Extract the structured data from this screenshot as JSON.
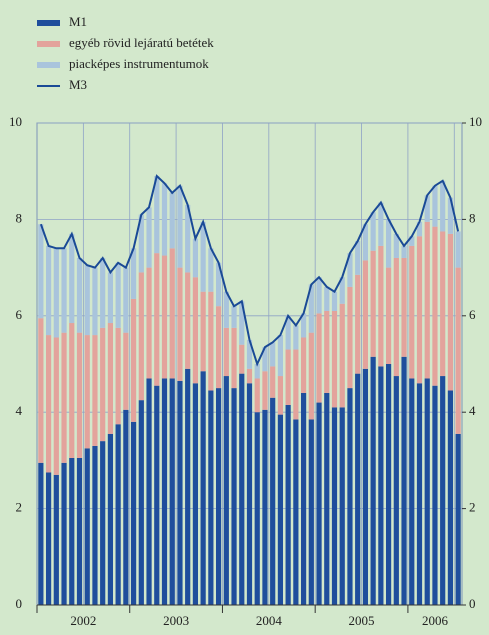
{
  "chart_data": {
    "type": "bar",
    "stacked": true,
    "categories": [
      "2002",
      null,
      null,
      null,
      null,
      null,
      null,
      null,
      null,
      null,
      null,
      null,
      "2003",
      null,
      null,
      null,
      null,
      null,
      null,
      null,
      null,
      null,
      null,
      null,
      "2004",
      null,
      null,
      null,
      null,
      null,
      null,
      null,
      null,
      null,
      null,
      null,
      "2005",
      null,
      null,
      null,
      null,
      null,
      null,
      null,
      null,
      null,
      null,
      null,
      "2006",
      null,
      null,
      null,
      null,
      null,
      null
    ],
    "series": [
      {
        "name": "M1",
        "color": "#1f4e9c",
        "mark": "bar",
        "values": [
          2.95,
          2.75,
          2.7,
          2.95,
          3.05,
          3.05,
          3.25,
          3.3,
          3.4,
          3.55,
          3.75,
          4.05,
          3.8,
          4.25,
          4.7,
          4.55,
          4.7,
          4.7,
          4.65,
          4.9,
          4.6,
          4.85,
          4.45,
          4.5,
          4.75,
          4.5,
          4.8,
          4.6,
          4.0,
          4.05,
          4.3,
          3.95,
          4.15,
          3.85,
          4.4,
          3.85,
          4.2,
          4.4,
          4.1,
          4.1,
          4.5,
          4.8,
          4.9,
          5.15,
          4.95,
          5.0,
          4.75,
          5.15,
          4.7,
          4.6,
          4.7,
          4.55,
          4.75,
          4.45,
          3.55
        ]
      },
      {
        "name": "egyéb rövid lejáratú betétek",
        "color": "#e3a39c",
        "mark": "bar",
        "values": [
          3.0,
          2.85,
          2.85,
          2.7,
          2.8,
          2.6,
          2.35,
          2.3,
          2.35,
          2.3,
          2.0,
          1.6,
          2.55,
          2.65,
          2.3,
          2.75,
          2.55,
          2.7,
          2.35,
          2.0,
          2.2,
          1.65,
          2.05,
          1.7,
          1.0,
          1.25,
          0.6,
          0.3,
          0.7,
          0.8,
          0.65,
          0.8,
          1.15,
          1.45,
          1.15,
          1.8,
          1.85,
          1.7,
          2.0,
          2.15,
          2.1,
          2.05,
          2.25,
          2.2,
          2.5,
          2.0,
          2.45,
          2.05,
          2.75,
          3.05,
          3.25,
          3.3,
          3.0,
          3.25,
          3.45
        ]
      },
      {
        "name": "piacképes instrumentumok",
        "color": "#a9c4dc",
        "mark": "bar",
        "values": [
          1.95,
          1.85,
          1.85,
          1.75,
          1.85,
          1.55,
          1.45,
          1.4,
          1.45,
          1.05,
          1.35,
          1.35,
          1.05,
          1.2,
          1.25,
          1.6,
          1.5,
          1.15,
          1.7,
          1.4,
          0.8,
          1.45,
          0.9,
          0.9,
          0.75,
          0.45,
          0.9,
          0.6,
          0.3,
          0.5,
          0.5,
          0.85,
          0.7,
          0.5,
          0.5,
          1.0,
          0.75,
          0.5,
          0.4,
          0.55,
          0.7,
          0.7,
          0.75,
          0.8,
          0.9,
          1.0,
          0.5,
          0.25,
          0.2,
          0.3,
          0.55,
          0.85,
          1.05,
          0.75,
          0.75
        ]
      },
      {
        "name": "M3",
        "color": "#1a4a96",
        "mark": "line",
        "values": [
          7.9,
          7.45,
          7.4,
          7.4,
          7.7,
          7.2,
          7.05,
          7.0,
          7.2,
          6.9,
          7.1,
          7.0,
          7.4,
          8.1,
          8.25,
          8.9,
          8.75,
          8.55,
          8.7,
          8.3,
          7.6,
          7.95,
          7.4,
          7.1,
          6.5,
          6.2,
          6.3,
          5.5,
          5.0,
          5.35,
          5.45,
          5.6,
          6.0,
          5.8,
          6.05,
          6.65,
          6.8,
          6.6,
          6.5,
          6.8,
          7.3,
          7.55,
          7.9,
          8.15,
          8.35,
          8.0,
          7.7,
          7.45,
          7.65,
          7.95,
          8.5,
          8.7,
          8.8,
          8.45,
          7.75
        ]
      }
    ],
    "ylim": [
      0,
      10
    ],
    "yticks": [
      0,
      2,
      4,
      6,
      8,
      10
    ],
    "y2lim": [
      0,
      10
    ],
    "y2ticks": [
      0,
      2,
      4,
      6,
      8,
      10
    ],
    "grid": true
  }
}
